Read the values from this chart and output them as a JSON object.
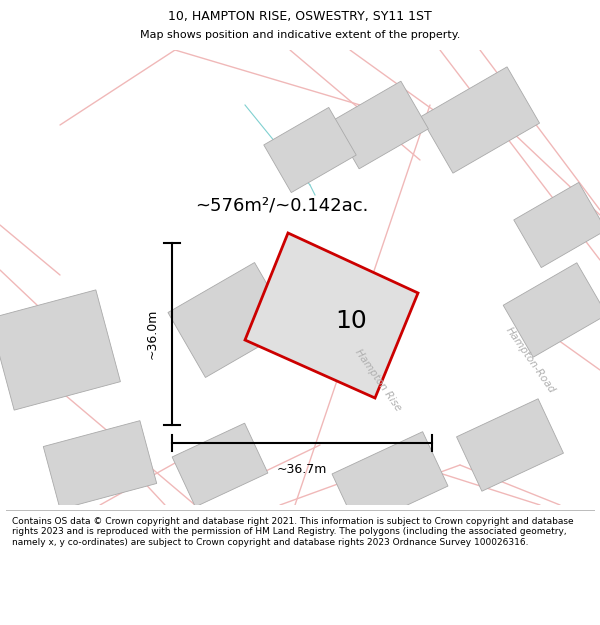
{
  "title": "10, HAMPTON RISE, OSWESTRY, SY11 1ST",
  "subtitle": "Map shows position and indicative extent of the property.",
  "area_text": "~576m²/~0.142ac.",
  "label_10": "10",
  "dim_h": "~36.0m",
  "dim_w": "~36.7m",
  "road_label1": "Hampton Rise",
  "road_label2": "Hampton-Road",
  "footer": "Contains OS data © Crown copyright and database right 2021. This information is subject to Crown copyright and database rights 2023 and is reproduced with the permission of HM Land Registry. The polygons (including the associated geometry, namely x, y co-ordinates) are subject to Crown copyright and database rights 2023 Ordnance Survey 100026316.",
  "map_bg": "#f8f7f5",
  "road_color": "#f0b8b8",
  "red_border": "#cc0000",
  "building_fill": "#d4d4d4",
  "building_edge": "#aaaaaa",
  "cyan_line": "#80d0d0",
  "title_fontsize": 9,
  "subtitle_fontsize": 8,
  "area_fontsize": 13,
  "label_fontsize": 18,
  "dim_fontsize": 9,
  "road_fontsize": 7.5,
  "footer_fontsize": 6.5
}
